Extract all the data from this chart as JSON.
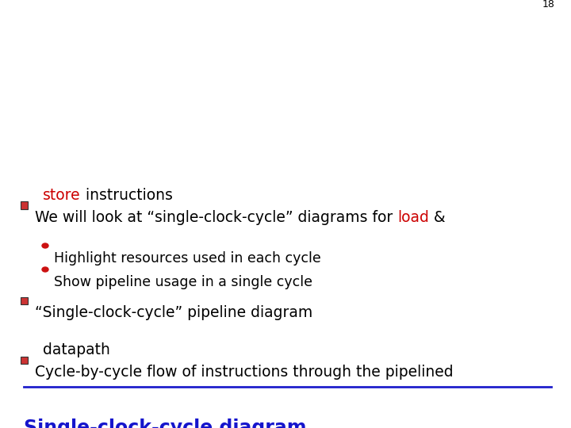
{
  "title": "Single-clock-cycle diagram",
  "title_color": "#1515CC",
  "title_fontsize": 17,
  "underline_color": "#2020CC",
  "bg_color": "#FFFFFF",
  "text_color": "#000000",
  "red_color": "#CC0000",
  "bullet_sq_color": "#CC3333",
  "bullet_sq_edge": "#333333",
  "circle_color": "#CC1111",
  "bullet1_line1": "Cycle-by-cycle flow of instructions through the pipelined",
  "bullet1_line2": "datapath",
  "bullet2": "“Single-clock-cycle” pipeline diagram",
  "sub1": "Show pipeline usage in a single cycle",
  "sub2": "Highlight resources used in each cycle",
  "b3_prefix": "We will look at “single-clock-cycle” diagrams for ",
  "b3_load": "load",
  "b3_mid": " &",
  "b3_store": "store",
  "b3_suffix": " instructions",
  "page_number": "18",
  "text_fontsize": 13.5,
  "sub_fontsize": 12.5
}
